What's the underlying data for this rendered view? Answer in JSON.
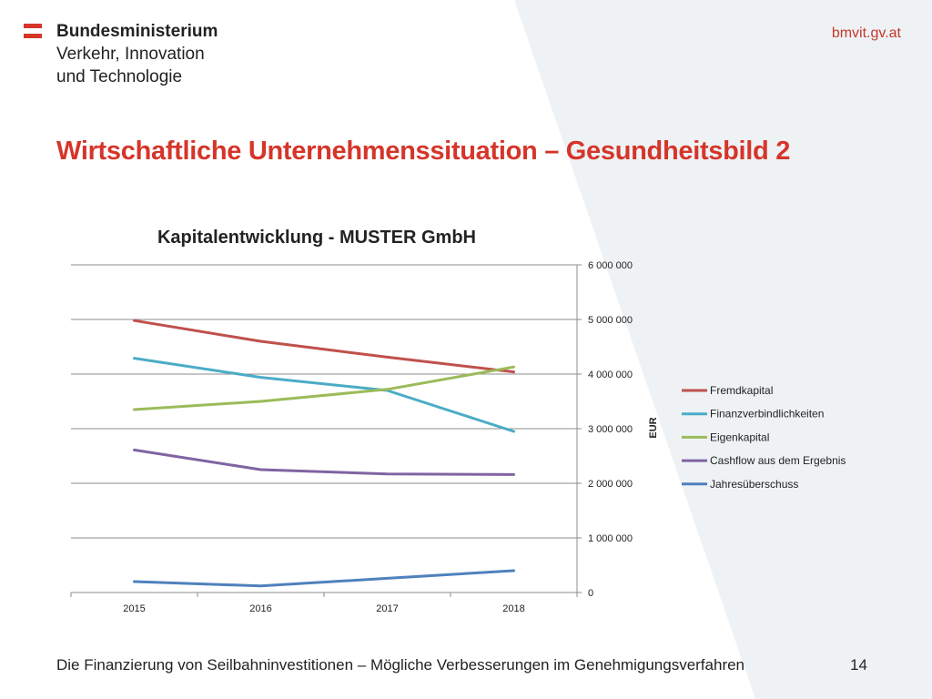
{
  "header": {
    "ministry_line1": "Bundesministerium",
    "ministry_line2": "Verkehr, Innovation",
    "ministry_line3": "und Technologie",
    "site": "bmvit.gv.at"
  },
  "slide": {
    "title": "Wirtschaftliche Unternehmenssituation – Gesundheitsbild 2",
    "footer": "Die Finanzierung von Seilbahninvestitionen – Mögliche Verbesserungen im Genehmigungsverfahren",
    "page_number": "14"
  },
  "colors": {
    "flag_red": "#d6352a",
    "title_red": "#d6352a",
    "background_shape": "#eef2f5"
  },
  "chart_data": {
    "type": "line",
    "title": "Kapitalentwicklung - MUSTER GmbH",
    "xlabel": "",
    "ylabel": "EUR",
    "x": [
      "2015",
      "2016",
      "2017",
      "2018"
    ],
    "ylim": [
      0,
      6000000
    ],
    "yticks": [
      0,
      1000000,
      2000000,
      3000000,
      4000000,
      5000000,
      6000000
    ],
    "ytick_labels": [
      "0",
      "1 000 000",
      "2 000 000",
      "3 000 000",
      "4 000 000",
      "5 000 000",
      "6 000 000"
    ],
    "y_axis_position": "right",
    "grid": true,
    "legend_position": "right",
    "series": [
      {
        "name": "Fremdkapital",
        "color": "#c0504d",
        "values": [
          4980000,
          4600000,
          4310000,
          4040000
        ]
      },
      {
        "name": "Finanzverbindlichkeiten",
        "color": "#4bacc6",
        "values": [
          4290000,
          3940000,
          3700000,
          2950000
        ]
      },
      {
        "name": "Eigenkapital",
        "color": "#9bbb59",
        "values": [
          3350000,
          3500000,
          3720000,
          4130000
        ]
      },
      {
        "name": "Cashflow aus dem Ergebnis",
        "color": "#8064a2",
        "values": [
          2610000,
          2250000,
          2170000,
          2160000
        ]
      },
      {
        "name": "Jahresüberschuss",
        "color": "#4f81bd",
        "values": [
          200000,
          120000,
          260000,
          400000
        ]
      }
    ]
  }
}
